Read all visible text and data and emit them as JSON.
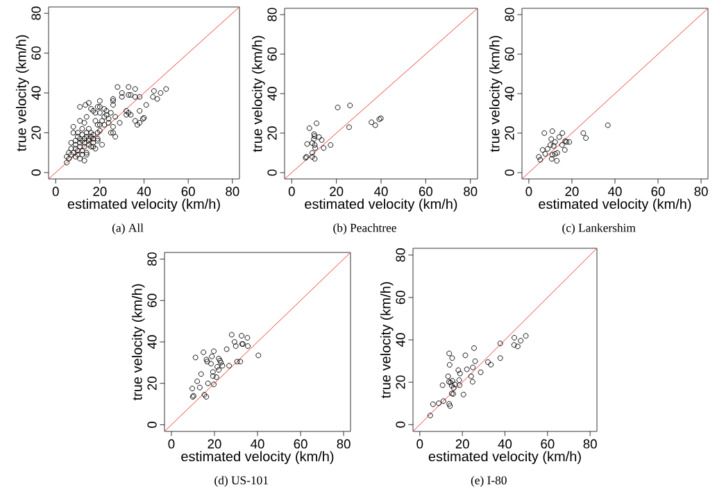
{
  "chart_data": [
    {
      "type": "scatter",
      "xlabel": "estimated velocity (km/h)",
      "ylabel": "true velocity (km/h)",
      "annotations": [
        "(a) All"
      ],
      "xlim": [
        -3.2,
        83.2
      ],
      "ylim": [
        -3.2,
        83.2
      ],
      "xticks": [
        0,
        20,
        40,
        60,
        80
      ],
      "yticks": [
        0,
        20,
        40,
        60,
        80
      ],
      "series": [
        {
          "marker": "circle",
          "color": "#000000",
          "x": [
            28,
            33,
            36,
            30,
            33,
            34,
            36,
            38,
            30,
            44.5,
            47.5,
            50,
            44,
            46,
            26,
            26,
            26,
            20,
            15,
            11,
            13.5,
            16,
            17,
            19,
            20,
            22,
            23,
            18,
            14,
            22,
            25,
            27,
            32,
            33,
            32,
            34,
            38,
            41,
            36,
            37,
            38,
            39.5,
            40,
            29,
            21,
            24,
            26,
            25,
            26,
            27,
            18,
            19,
            20,
            13,
            11,
            15,
            12,
            8,
            8,
            10,
            12,
            14,
            16,
            17,
            19,
            10,
            11,
            13,
            15,
            17,
            19,
            9,
            11,
            13,
            15,
            17,
            19,
            21,
            7,
            9,
            11,
            13,
            15,
            17,
            18,
            7,
            9,
            10,
            12,
            14,
            6,
            8,
            10,
            12,
            14,
            13,
            11,
            5,
            6,
            5,
            7,
            9,
            16,
            16,
            14,
            12,
            20,
            22,
            24,
            20,
            23
          ],
          "values": [
            43,
            43,
            42,
            40,
            39,
            39,
            38,
            38,
            38,
            41,
            40,
            42,
            38,
            37,
            36,
            37,
            34,
            36,
            35,
            33,
            34,
            32,
            31,
            33,
            33,
            32,
            31,
            30,
            28,
            28,
            30,
            28,
            31,
            30,
            29,
            29,
            31,
            34,
            26,
            24,
            25,
            27,
            27.5,
            25,
            26,
            27,
            23,
            20,
            20,
            18,
            26,
            24,
            24,
            25,
            26,
            22,
            22,
            23,
            20,
            20,
            19,
            20,
            20,
            19,
            20,
            18,
            17,
            17,
            17,
            17,
            17,
            16,
            15,
            15,
            16,
            15,
            16,
            14,
            15,
            14,
            13,
            13,
            14,
            13,
            12,
            12,
            12,
            11,
            11,
            10,
            10,
            10,
            9,
            9,
            9,
            6,
            7,
            8,
            7,
            5,
            9,
            8,
            13,
            18,
            18,
            16,
            21,
            24,
            25,
            30,
            29
          ]
        },
        {
          "type": "line",
          "color": "#e8312a",
          "x": [
            -3.2,
            83.2
          ],
          "values": [
            -3.2,
            83.2
          ]
        }
      ]
    },
    {
      "type": "scatter",
      "xlabel": "estimated velocity (km/h)",
      "ylabel": "true velocity (km/h)",
      "annotations": [
        "(b) Peachtree"
      ],
      "xlim": [
        -3.2,
        83.2
      ],
      "ylim": [
        -3.2,
        83.2
      ],
      "xticks": [
        0,
        20,
        40,
        60,
        80
      ],
      "yticks": [
        0,
        20,
        40,
        60,
        80
      ],
      "series": [
        {
          "marker": "circle",
          "color": "#000000",
          "x": [
            20.6,
            26.1,
            11.1,
            7.9,
            25.7,
            35.7,
            37.4,
            39.2,
            39.9,
            10,
            10.2,
            12.2,
            13.4,
            9.9,
            9.2,
            6.9,
            10.3,
            10.5,
            14.3,
            17.4,
            9.2,
            9.2,
            6.6,
            6.2,
            10.3
          ],
          "values": [
            33,
            34,
            25,
            22.5,
            23,
            25.5,
            24,
            27,
            27.5,
            19.5,
            18.5,
            18,
            16.5,
            17,
            15,
            14.5,
            14,
            12.5,
            12.5,
            14,
            10,
            8,
            8,
            7.5,
            7
          ]
        },
        {
          "type": "line",
          "color": "#e8312a",
          "x": [
            -3.2,
            83.2
          ],
          "values": [
            -3.2,
            83.2
          ]
        }
      ]
    },
    {
      "type": "scatter",
      "xlabel": "estimated velocity (km/h)",
      "ylabel": "true velocity (km/h)",
      "annotations": [
        "(c) Lankershim"
      ],
      "xlim": [
        -3.2,
        83.2
      ],
      "ylim": [
        -3.2,
        83.2
      ],
      "xticks": [
        0,
        20,
        40,
        60,
        80
      ],
      "yticks": [
        0,
        20,
        40,
        60,
        80
      ],
      "series": [
        {
          "marker": "circle",
          "color": "#000000",
          "x": [
            36.7,
            25.3,
            26.5,
            7.2,
            10.9,
            15.6,
            14.1,
            10.4,
            12.2,
            10,
            11.5,
            16.9,
            17.5,
            18.8,
            15.4,
            16.7,
            8.7,
            6.4,
            7.6,
            4.6,
            5.3,
            10.9,
            13.2,
            12.2,
            10.6,
            13
          ],
          "values": [
            24,
            20,
            17.5,
            20,
            21,
            20,
            18,
            17,
            15.5,
            14,
            13.5,
            16,
            15.5,
            15.5,
            14,
            11.5,
            12,
            11.5,
            9.5,
            8,
            6.5,
            9,
            10,
            9.5,
            7,
            6
          ]
        },
        {
          "type": "line",
          "color": "#e8312a",
          "x": [
            -3.2,
            83.2
          ],
          "values": [
            -3.2,
            83.2
          ]
        }
      ]
    },
    {
      "type": "scatter",
      "xlabel": "estimated velocity (km/h)",
      "ylabel": "true velocity (km/h)",
      "annotations": [
        "(d) US-101"
      ],
      "xlim": [
        -3.2,
        83.2
      ],
      "ylim": [
        -3.2,
        83.2
      ],
      "xticks": [
        0,
        20,
        40,
        60,
        80
      ],
      "yticks": [
        0,
        20,
        40,
        60,
        80
      ],
      "series": [
        {
          "marker": "circle",
          "color": "#000000",
          "x": [
            28,
            32.6,
            35.3,
            29.3,
            29.9,
            32.8,
            33.2,
            35.5,
            25.7,
            40.4,
            11.2,
            14.9,
            19.7,
            18.8,
            16.3,
            16.6,
            18.4,
            22,
            22.6,
            23,
            21.3,
            23.7,
            26.8,
            30.5,
            32,
            22,
            19.3,
            19.3,
            20.9,
            13.8,
            12,
            17,
            19.7,
            9.7,
            13.2,
            15.3,
            16.2,
            9.9,
            10.3
          ],
          "values": [
            43.5,
            43,
            42,
            40,
            38,
            39,
            39,
            38,
            36.5,
            33.5,
            32.5,
            35,
            35.5,
            33,
            31.5,
            30.5,
            29.5,
            32,
            31,
            30,
            28,
            28.5,
            28.5,
            30.5,
            30.5,
            26.5,
            25.5,
            23.5,
            23,
            24.5,
            21,
            20,
            19.5,
            17.5,
            18,
            14.5,
            13.5,
            13.5,
            14
          ]
        },
        {
          "type": "line",
          "color": "#e8312a",
          "x": [
            -3.2,
            83.2
          ],
          "values": [
            -3.2,
            83.2
          ]
        }
      ]
    },
    {
      "type": "scatter",
      "xlabel": "estimated velocity (km/h)",
      "ylabel": "true velocity (km/h)",
      "annotations": [
        "(e) I-80"
      ],
      "xlim": [
        -3.2,
        83.2
      ],
      "ylim": [
        -3.2,
        83.2
      ],
      "xticks": [
        0,
        20,
        40,
        60,
        80
      ],
      "yticks": [
        0,
        20,
        40,
        60,
        80
      ],
      "series": [
        {
          "marker": "circle",
          "color": "#000000",
          "x": [
            49.8,
            44.4,
            47.4,
            44.3,
            46,
            37.8,
            37.8,
            32,
            33.4,
            28.6,
            25.5,
            26,
            24.9,
            24.1,
            24.8,
            21.4,
            22.1,
            18.1,
            18.9,
            13.8,
            15.2,
            14,
            13.3,
            13.7,
            15.3,
            18.5,
            18.7,
            16.5,
            15.9,
            15,
            15.7,
            10.7,
            20.5,
            11.1,
            8.9,
            6.2,
            13.8,
            14.2,
            4.9,
            15,
            14.4
          ],
          "values": [
            41.9,
            41,
            39.6,
            37.6,
            36.9,
            38.3,
            31.4,
            29.5,
            28.3,
            24.7,
            36.1,
            29.9,
            27,
            22.8,
            20.2,
            32.7,
            26.1,
            25.7,
            24.1,
            33.6,
            31.4,
            28.2,
            22.8,
            20.2,
            20.7,
            21,
            18.6,
            18.9,
            17.3,
            14.7,
            14.5,
            18.6,
            14.2,
            11.1,
            10.1,
            9.6,
            9.8,
            8.8,
            4.3,
            18.4,
            19.9
          ]
        },
        {
          "type": "line",
          "color": "#e8312a",
          "x": [
            -3.2,
            83.2
          ],
          "values": [
            -3.2,
            83.2
          ]
        }
      ]
    }
  ]
}
